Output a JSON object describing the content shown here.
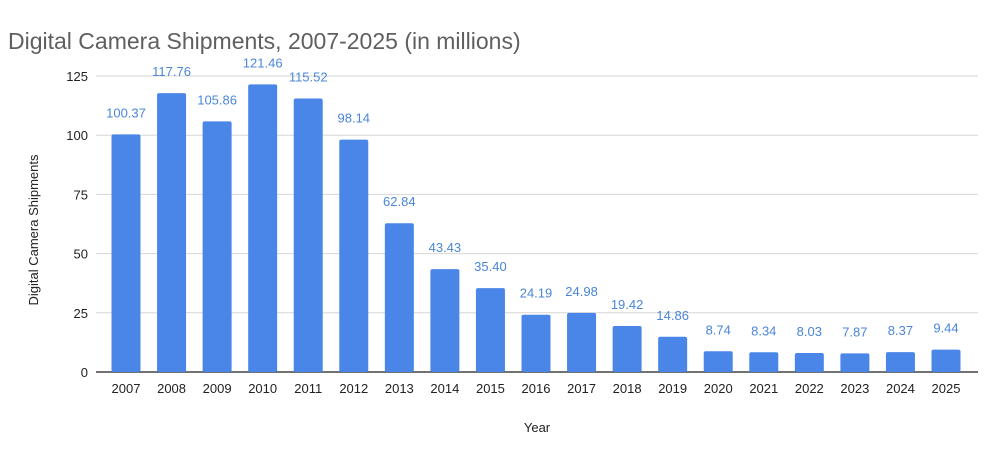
{
  "chart_data": {
    "type": "bar",
    "title": "Digital Camera Shipments, 2007-2025 (in millions)",
    "xlabel": "Year",
    "ylabel": "Digital Camera Shipments",
    "ylim": [
      0,
      125
    ],
    "yticks": [
      0,
      25,
      50,
      75,
      100,
      125
    ],
    "grid": true,
    "bar_color": "#4a86e8",
    "categories": [
      "2007",
      "2008",
      "2009",
      "2010",
      "2011",
      "2012",
      "2013",
      "2014",
      "2015",
      "2016",
      "2017",
      "2018",
      "2019",
      "2020",
      "2021",
      "2022",
      "2023",
      "2024",
      "2025"
    ],
    "values": [
      100.37,
      117.76,
      105.86,
      121.46,
      115.52,
      98.14,
      62.84,
      43.43,
      35.4,
      24.19,
      24.98,
      19.42,
      14.86,
      8.74,
      8.34,
      8.03,
      7.87,
      8.37,
      9.44
    ],
    "data_labels": [
      "100.37",
      "117.76",
      "105.86",
      "121.46",
      "115.52",
      "98.14",
      "62.84",
      "43.43",
      "35.40",
      "24.19",
      "24.98",
      "19.42",
      "14.86",
      "8.74",
      "8.34",
      "8.03",
      "7.87",
      "8.37",
      "9.44"
    ]
  }
}
